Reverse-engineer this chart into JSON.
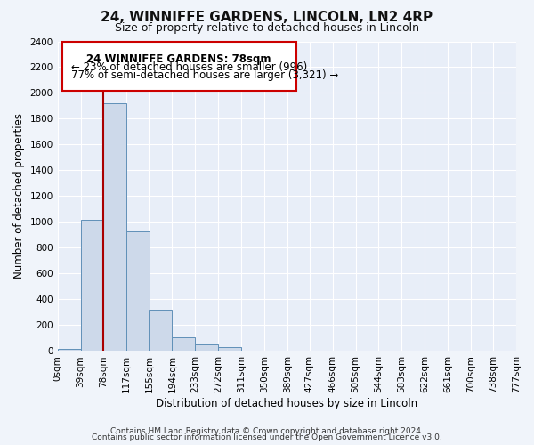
{
  "title": "24, WINNIFFE GARDENS, LINCOLN, LN2 4RP",
  "subtitle": "Size of property relative to detached houses in Lincoln",
  "xlabel": "Distribution of detached houses by size in Lincoln",
  "ylabel": "Number of detached properties",
  "footer_line1": "Contains HM Land Registry data © Crown copyright and database right 2024.",
  "footer_line2": "Contains public sector information licensed under the Open Government Licence v3.0.",
  "annotation_line1": "24 WINNIFFE GARDENS: 78sqm",
  "annotation_line2": "← 23% of detached houses are smaller (996)",
  "annotation_line3": "77% of semi-detached houses are larger (3,321) →",
  "property_size": 78,
  "bin_edges": [
    0,
    39,
    78,
    117,
    155,
    194,
    233,
    272,
    311,
    350,
    389,
    427,
    466,
    505,
    544,
    583,
    622,
    661,
    700,
    738,
    777
  ],
  "bin_labels": [
    "0sqm",
    "39sqm",
    "78sqm",
    "117sqm",
    "155sqm",
    "194sqm",
    "233sqm",
    "272sqm",
    "311sqm",
    "350sqm",
    "389sqm",
    "427sqm",
    "466sqm",
    "505sqm",
    "544sqm",
    "583sqm",
    "622sqm",
    "661sqm",
    "700sqm",
    "738sqm",
    "777sqm"
  ],
  "bar_heights": [
    20,
    1020,
    1920,
    930,
    320,
    110,
    50,
    28,
    5,
    0,
    0,
    0,
    0,
    0,
    0,
    0,
    0,
    0,
    0,
    0
  ],
  "bar_color": "#cdd9ea",
  "bar_edge_color": "#6090b8",
  "vline_color": "#aa0000",
  "vline_x": 78,
  "ylim": [
    0,
    2400
  ],
  "yticks": [
    0,
    200,
    400,
    600,
    800,
    1000,
    1200,
    1400,
    1600,
    1800,
    2000,
    2200,
    2400
  ],
  "bg_color": "#f0f4fa",
  "axes_bg_color": "#e8eef8",
  "grid_color": "#ffffff",
  "annotation_box_edge": "#cc0000",
  "title_fontsize": 11,
  "subtitle_fontsize": 9,
  "axis_label_fontsize": 8.5,
  "tick_fontsize": 7.5,
  "annotation_fontsize": 8.5,
  "footer_fontsize": 6.5
}
